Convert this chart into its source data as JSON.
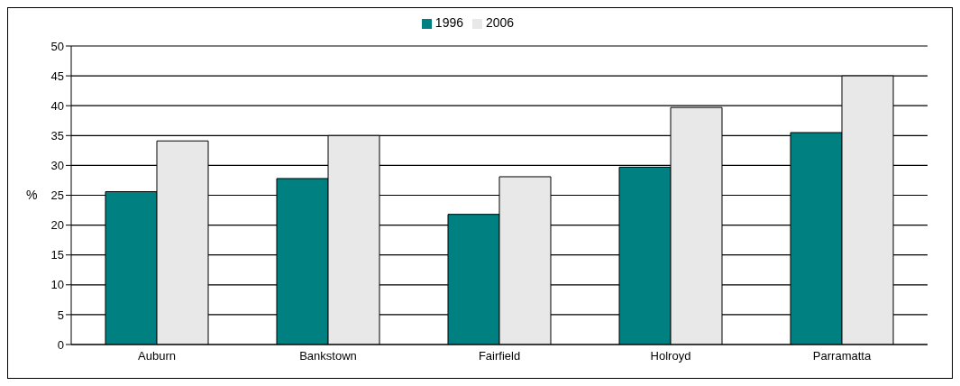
{
  "chart_data": {
    "type": "bar",
    "ylabel": "%",
    "categories": [
      "Auburn",
      "Bankstown",
      "Fairfield",
      "Holroyd",
      "Parramatta"
    ],
    "series": [
      {
        "name": "1996",
        "color": "#008080",
        "values": [
          25.6,
          27.8,
          21.8,
          29.7,
          35.5
        ]
      },
      {
        "name": "2006",
        "color": "#e8e8e8",
        "values": [
          34.1,
          35.0,
          28.1,
          39.7,
          45.0
        ]
      }
    ],
    "ylim": [
      0,
      50
    ],
    "yticks": [
      0,
      5,
      10,
      15,
      20,
      25,
      30,
      35,
      40,
      45,
      50
    ],
    "grid": "y",
    "legend": "top"
  }
}
